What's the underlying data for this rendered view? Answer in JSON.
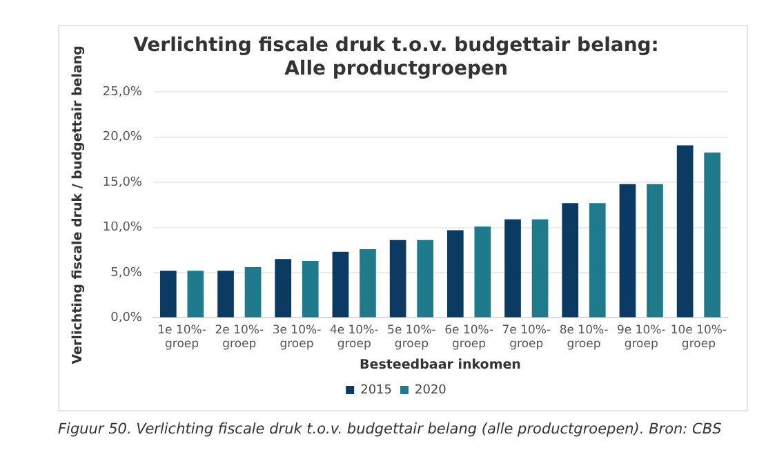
{
  "chart_data": {
    "type": "bar",
    "title": "Verlichting fiscale druk t.o.v. budgettair belang:",
    "subtitle": "Alle productgroepen",
    "xlabel": "Besteedbaar inkomen",
    "ylabel": "Verlichting fiscale druk / budgettair belang",
    "categories": [
      "1e 10%-groep",
      "2e 10%-groep",
      "3e 10%-groep",
      "4e 10%-groep",
      "5e 10%-groep",
      "6e 10%-groep",
      "7e 10%-groep",
      "8e 10%-groep",
      "9e 10%-groep",
      "10e 10%-groep"
    ],
    "series": [
      {
        "name": "2015",
        "color": "#0b3a63",
        "values": [
          5.2,
          5.2,
          6.5,
          7.3,
          8.6,
          9.7,
          10.9,
          12.7,
          14.8,
          19.1
        ]
      },
      {
        "name": "2020",
        "color": "#1f7a8c",
        "values": [
          5.2,
          5.6,
          6.3,
          7.6,
          8.6,
          10.1,
          10.9,
          12.7,
          14.8,
          18.3
        ]
      }
    ],
    "ylim": [
      0,
      25
    ],
    "yticks": [
      {
        "value": 0,
        "label": "0,0%"
      },
      {
        "value": 5,
        "label": "5,0%"
      },
      {
        "value": 10,
        "label": "10,0%"
      },
      {
        "value": 15,
        "label": "15,0%"
      },
      {
        "value": 20,
        "label": "20,0%"
      },
      {
        "value": 25,
        "label": "25,0%"
      }
    ],
    "grid": "y",
    "legend": "bottom",
    "annotations": [
      "Figuur 50. Verlichting fiscale druk t.o.v. budgettair belang (alle productgroepen). Bron: CBS"
    ]
  }
}
